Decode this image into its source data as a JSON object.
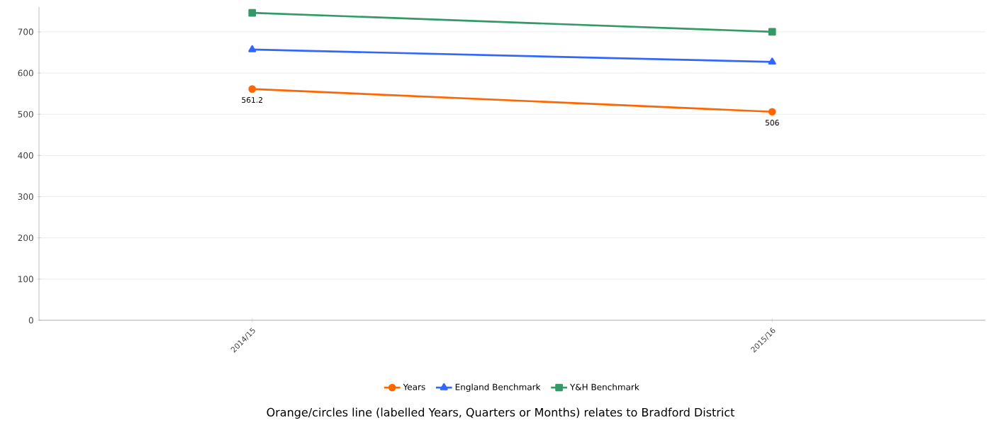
{
  "chart_data": {
    "type": "line",
    "categories": [
      "2014/15",
      "2015/16"
    ],
    "series": [
      {
        "name": "Years",
        "color": "#ff6600",
        "marker": "circle",
        "values": [
          561.2,
          506
        ],
        "value_labels": [
          "561.2",
          "506"
        ]
      },
      {
        "name": "England Benchmark",
        "color": "#3366ff",
        "marker": "triangle",
        "values": [
          657,
          627
        ]
      },
      {
        "name": "Y&H Benchmark",
        "color": "#339966",
        "marker": "square",
        "values": [
          746,
          700
        ]
      }
    ],
    "ylim": [
      0,
      760
    ],
    "yticks": [
      0,
      100,
      200,
      300,
      400,
      500,
      600,
      700
    ],
    "grid": "y",
    "legend": "bottom",
    "line_style": "solid",
    "annotations": [
      "Orange/circles line (labelled Years, Quarters or Months) relates to Bradford District"
    ]
  }
}
